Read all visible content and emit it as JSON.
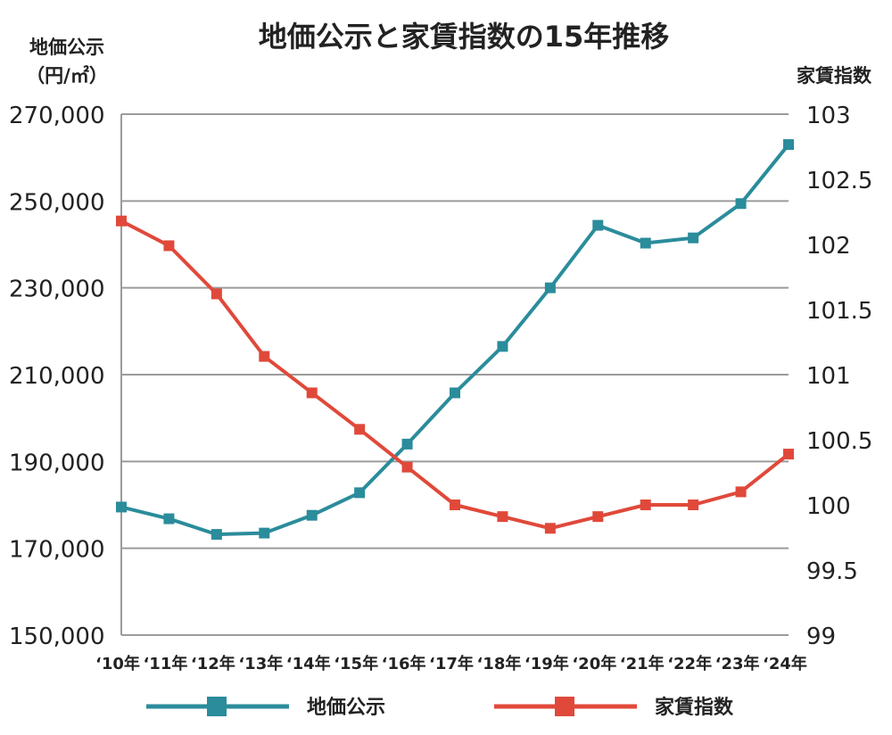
{
  "chart_data": {
    "type": "line",
    "title": "地価公示と家賃指数の15年推移",
    "ylabel_left": [
      "地価公示",
      "（円/㎡）"
    ],
    "ylabel_right": "家賃指数",
    "categories": [
      "'10年",
      "'11年",
      "'12年",
      "'13年",
      "'14年",
      "'15年",
      "'16年",
      "'17年",
      "'18年",
      "'19年",
      "'20年",
      "'21年",
      "'22年",
      "'23年",
      "'24年"
    ],
    "x_tick_labels": [
      "‘10年",
      "‘11年",
      "‘12年",
      "‘13年",
      "‘14年",
      "‘15年",
      "‘16年",
      "‘17年",
      "‘18年",
      "‘19年",
      "‘20年",
      "‘21年",
      "‘22年",
      "‘23年",
      "‘24年"
    ],
    "y_left": {
      "lim": [
        150000,
        270000
      ],
      "ticks": [
        150000,
        170000,
        190000,
        210000,
        230000,
        250000,
        270000
      ],
      "tick_labels": [
        "150,000",
        "170,000",
        "190,000",
        "210,000",
        "230,000",
        "250,000",
        "270,000"
      ]
    },
    "y_right": {
      "lim": [
        99,
        103
      ],
      "ticks": [
        99,
        99.5,
        100,
        100.5,
        101,
        101.5,
        102,
        102.5,
        103
      ],
      "tick_labels": [
        "99",
        "99.5",
        "100",
        "100.5",
        "101",
        "101.5",
        "102",
        "102.5",
        "103"
      ]
    },
    "grid": true,
    "legend_position": "bottom",
    "series": [
      {
        "name": "地価公示",
        "axis": "left",
        "color": "#2b8c9b",
        "marker": "square",
        "values": [
          179500,
          176800,
          173200,
          173500,
          177600,
          182800,
          194000,
          205800,
          216500,
          230000,
          244400,
          240300,
          241500,
          249400,
          263000
        ]
      },
      {
        "name": "家賃指数",
        "axis": "right",
        "color": "#e0493a",
        "marker": "square",
        "values": [
          102.18,
          101.99,
          101.62,
          101.14,
          100.86,
          100.58,
          100.29,
          100.0,
          99.91,
          99.82,
          99.91,
          100.0,
          100.0,
          100.1,
          100.39
        ]
      }
    ]
  }
}
